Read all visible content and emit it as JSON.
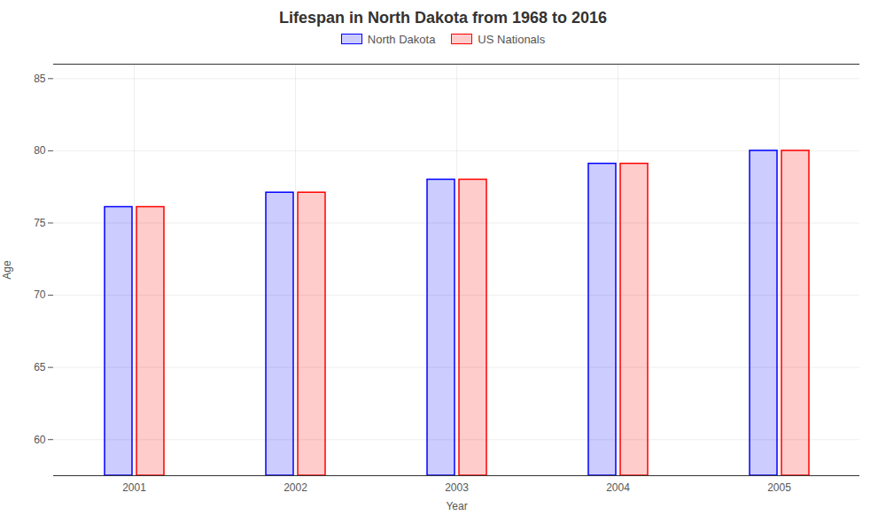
{
  "chart_data": {
    "type": "bar",
    "title": "Lifespan in North Dakota from 1968 to 2016",
    "xlabel": "Year",
    "ylabel": "Age",
    "categories": [
      "2001",
      "2002",
      "2003",
      "2004",
      "2005"
    ],
    "series": [
      {
        "name": "North Dakota",
        "color": "#0000ff",
        "values": [
          76.1,
          77.1,
          78.0,
          79.1,
          80.0
        ]
      },
      {
        "name": "US Nationals",
        "color": "#ff0000",
        "values": [
          76.1,
          77.1,
          78.0,
          79.1,
          80.0
        ]
      }
    ],
    "ylim": [
      57.5,
      86
    ],
    "yticks": [
      60,
      65,
      70,
      75,
      80,
      85
    ],
    "grid": true,
    "legend": "top"
  }
}
